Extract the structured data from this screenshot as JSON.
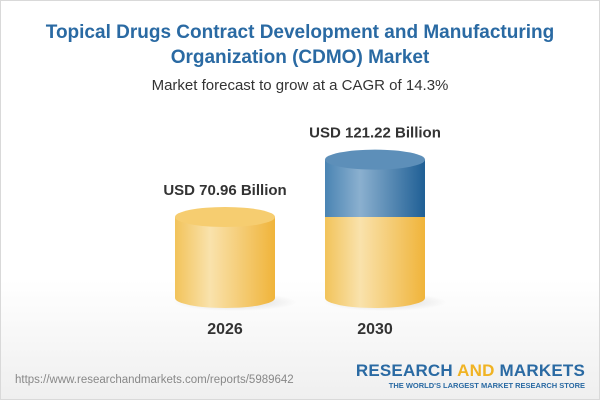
{
  "title": "Topical Drugs Contract Development and Manufacturing Organization (CDMO) Market",
  "subtitle": "Market forecast to grow at a CAGR of 14.3%",
  "chart_data": {
    "type": "bar",
    "style": "3d-cylinder",
    "categories": [
      "2026",
      "2030"
    ],
    "values": [
      70.96,
      121.22
    ],
    "data_labels": [
      "USD 70.96 Billion",
      "USD 121.22 Billion"
    ],
    "unit": "USD Billion",
    "cagr": "14.3%",
    "grid": false,
    "colors": {
      "base": "#f3c357",
      "growth": "#3a78ab"
    }
  },
  "footer": {
    "url": "https://www.researchandmarkets.com/reports/5989642",
    "logo_part1": "RESEARCH ",
    "logo_part2": "AND",
    "logo_part3": " MARKETS",
    "tagline": "THE WORLD'S LARGEST MARKET RESEARCH STORE"
  }
}
